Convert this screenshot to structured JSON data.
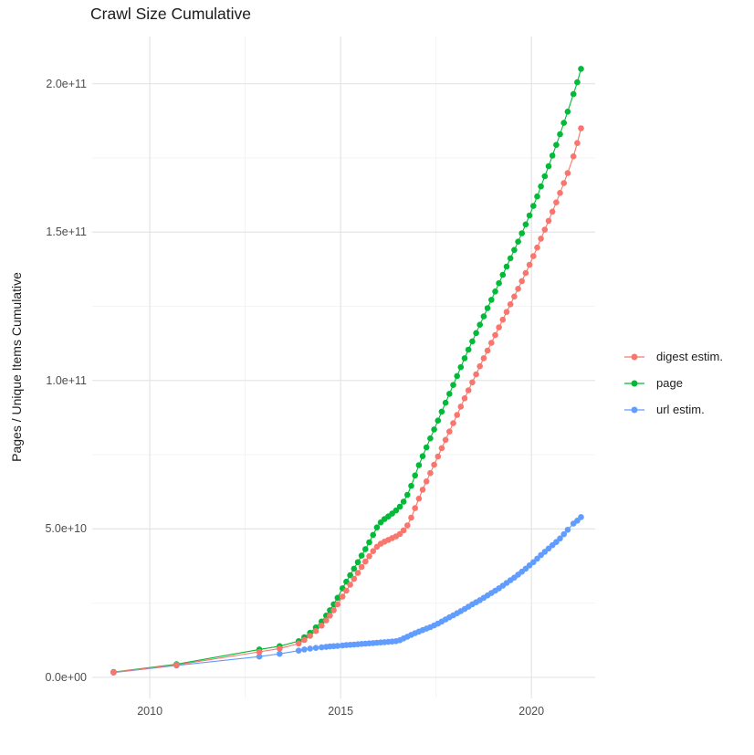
{
  "chart_data": {
    "type": "line",
    "title": "Crawl Size Cumulative",
    "xlabel": "",
    "ylabel": "Pages / Unique Items Cumulative",
    "legend_position": "right",
    "grid": "major and minor, light gray on white background",
    "xlim": [
      2008.49,
      2021.67
    ],
    "ylim": [
      -7100000000.0,
      215900000000.0
    ],
    "x_ticks": {
      "values": [
        2010,
        2015,
        2020
      ],
      "labels": [
        "2010",
        "2015",
        "2020"
      ]
    },
    "x_minor_ticks": [
      2012.5,
      2017.5
    ],
    "y_ticks": {
      "values": [
        0,
        50000000000.0,
        100000000000.0,
        150000000000.0,
        200000000000.0
      ],
      "labels": [
        "0.0e+00",
        "5.0e+10",
        "1.0e+11",
        "1.5e+11",
        "2.0e+11"
      ]
    },
    "y_minor_ticks": [
      25000000000.0,
      75000000000.0,
      125000000000.0,
      175000000000.0
    ],
    "x_unit": "year of crawl",
    "y_unit": "cumulative count of pages / unique items",
    "x": [
      2009.05,
      2010.7,
      2012.87,
      2013.4,
      2013.9,
      2014.05,
      2014.2,
      2014.35,
      2014.5,
      2014.62,
      2014.72,
      2014.82,
      2014.92,
      2015.05,
      2015.15,
      2015.25,
      2015.35,
      2015.45,
      2015.55,
      2015.65,
      2015.75,
      2015.85,
      2015.95,
      2016.05,
      2016.15,
      2016.25,
      2016.35,
      2016.45,
      2016.55,
      2016.65,
      2016.75,
      2016.85,
      2016.95,
      2017.05,
      2017.15,
      2017.25,
      2017.35,
      2017.45,
      2017.55,
      2017.65,
      2017.75,
      2017.85,
      2017.95,
      2018.05,
      2018.15,
      2018.25,
      2018.35,
      2018.45,
      2018.55,
      2018.65,
      2018.75,
      2018.85,
      2018.95,
      2019.05,
      2019.15,
      2019.25,
      2019.35,
      2019.45,
      2019.55,
      2019.65,
      2019.75,
      2019.85,
      2019.95,
      2020.05,
      2020.15,
      2020.25,
      2020.35,
      2020.45,
      2020.55,
      2020.65,
      2020.75,
      2020.85,
      2020.95,
      2021.1,
      2021.2,
      2021.3
    ],
    "series": [
      {
        "name": "digest estim.",
        "color": "#F8766D",
        "values": [
          1700000000.0,
          4200000000.0,
          8600000000.0,
          9700000000.0,
          11400000000.0,
          12600000000.0,
          14000000000.0,
          15600000000.0,
          17400000000.0,
          19200000000.0,
          20800000000.0,
          22600000000.0,
          24600000000.0,
          27200000000.0,
          29200000000.0,
          31200000000.0,
          33200000000.0,
          35200000000.0,
          37200000000.0,
          39000000000.0,
          40800000000.0,
          42500000000.0,
          44000000000.0,
          45000000000.0,
          45700000000.0,
          46300000000.0,
          46900000000.0,
          47500000000.0,
          48300000000.0,
          49500000000.0,
          51200000000.0,
          53800000000.0,
          57000000000.0,
          60200000000.0,
          63200000000.0,
          66000000000.0,
          68800000000.0,
          71600000000.0,
          74400000000.0,
          77200000000.0,
          80000000000.0,
          82800000000.0,
          85600000000.0,
          88400000000.0,
          91200000000.0,
          94000000000.0,
          96700000000.0,
          99400000000.0,
          102100000000.0,
          104800000000.0,
          107500000000.0,
          110100000000.0,
          112700000000.0,
          115300000000.0,
          117900000000.0,
          120500000000.0,
          123100000000.0,
          125700000000.0,
          128300000000.0,
          130900000000.0,
          133500000000.0,
          136200000000.0,
          139000000000.0,
          141900000000.0,
          144800000000.0,
          147800000000.0,
          150800000000.0,
          153800000000.0,
          156900000000.0,
          160000000000.0,
          163200000000.0,
          166500000000.0,
          169900000000.0,
          175500000000.0,
          180000000000.0,
          185000000000.0
        ]
      },
      {
        "name": "page",
        "color": "#00BA38",
        "values": [
          1800000000.0,
          4400000000.0,
          9400000000.0,
          10500000000.0,
          12200000000.0,
          13500000000.0,
          15000000000.0,
          16800000000.0,
          18800000000.0,
          20800000000.0,
          22600000000.0,
          24600000000.0,
          26800000000.0,
          30000000000.0,
          32200000000.0,
          34400000000.0,
          36600000000.0,
          38800000000.0,
          41000000000.0,
          43200000000.0,
          45500000000.0,
          48000000000.0,
          50500000000.0,
          52200000000.0,
          53300000000.0,
          54200000000.0,
          55200000000.0,
          56200000000.0,
          57500000000.0,
          59200000000.0,
          61500000000.0,
          64500000000.0,
          68000000000.0,
          71500000000.0,
          74500000000.0,
          77500000000.0,
          80500000000.0,
          83500000000.0,
          86500000000.0,
          89500000000.0,
          92500000000.0,
          95500000000.0,
          98500000000.0,
          101500000000.0,
          104500000000.0,
          107500000000.0,
          110400000000.0,
          113200000000.0,
          116000000000.0,
          118800000000.0,
          121600000000.0,
          124400000000.0,
          127200000000.0,
          130000000000.0,
          132800000000.0,
          135600000000.0,
          138400000000.0,
          141200000000.0,
          144000000000.0,
          146800000000.0,
          149600000000.0,
          152600000000.0,
          155600000000.0,
          158800000000.0,
          162000000000.0,
          165400000000.0,
          168800000000.0,
          172200000000.0,
          175800000000.0,
          179400000000.0,
          183000000000.0,
          186800000000.0,
          190600000000.0,
          196500000000.0,
          200500000000.0,
          205000000000.0
        ]
      },
      {
        "name": "url estim.",
        "color": "#619CFF",
        "values": [
          1600000000.0,
          4000000000.0,
          7000000000.0,
          7900000000.0,
          9000000000.0,
          9400000000.0,
          9700000000.0,
          9900000000.0,
          10100000000.0,
          10250000000.0,
          10400000000.0,
          10500000000.0,
          10600000000.0,
          10750000000.0,
          10850000000.0,
          10950000000.0,
          11050000000.0,
          11150000000.0,
          11250000000.0,
          11350000000.0,
          11450000000.0,
          11550000000.0,
          11650000000.0,
          11750000000.0,
          11850000000.0,
          11950000000.0,
          12050000000.0,
          12200000000.0,
          12500000000.0,
          13100000000.0,
          13700000000.0,
          14300000000.0,
          14900000000.0,
          15400000000.0,
          15900000000.0,
          16400000000.0,
          16900000000.0,
          17500000000.0,
          18100000000.0,
          18800000000.0,
          19500000000.0,
          20200000000.0,
          20900000000.0,
          21600000000.0,
          22300000000.0,
          23000000000.0,
          23800000000.0,
          24600000000.0,
          25300000000.0,
          26000000000.0,
          26800000000.0,
          27600000000.0,
          28400000000.0,
          29200000000.0,
          30000000000.0,
          30900000000.0,
          31800000000.0,
          32700000000.0,
          33600000000.0,
          34600000000.0,
          35600000000.0,
          36600000000.0,
          37700000000.0,
          38800000000.0,
          40000000000.0,
          41200000000.0,
          42300000000.0,
          43400000000.0,
          44500000000.0,
          45600000000.0,
          46800000000.0,
          48200000000.0,
          49700000000.0,
          51800000000.0,
          52800000000.0,
          54000000000.0
        ]
      }
    ],
    "style": {
      "major_grid_color": "#E4E4E4",
      "minor_grid_color": "#F2F2F2",
      "point_radius_px": 3.3,
      "draw_order_note": "digest points drawn on top where series overlap"
    }
  }
}
